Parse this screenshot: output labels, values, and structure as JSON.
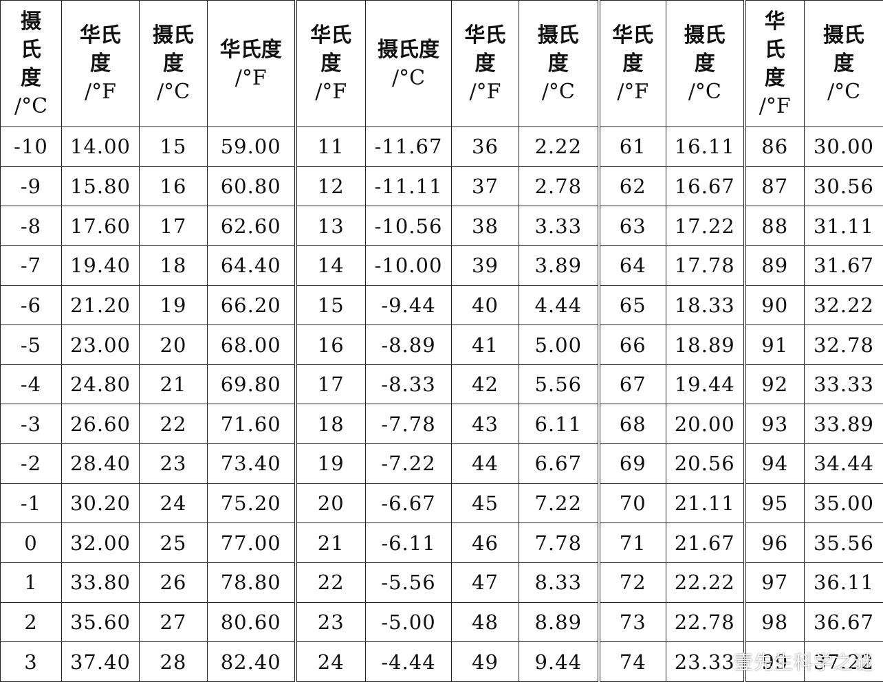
{
  "headers": [
    {
      "name": "摄氏度",
      "unit": "/°C"
    },
    {
      "name": "华氏度",
      "unit": "/°F"
    },
    {
      "name": "摄氏度",
      "unit": "/°C"
    },
    {
      "name": "华氏度",
      "unit": "/°F"
    },
    {
      "name": "华氏度",
      "unit": "/°F"
    },
    {
      "name": "摄氏度",
      "unit": "/°C"
    },
    {
      "name": "华氏度",
      "unit": "/°F"
    },
    {
      "name": "摄氏度",
      "unit": "/°C"
    },
    {
      "name": "华氏度",
      "unit": "/°F"
    },
    {
      "name": "摄氏度",
      "unit": "/°C"
    },
    {
      "name": "华氏度",
      "unit": "/°F"
    },
    {
      "name": "摄氏度",
      "unit": "/°C"
    }
  ],
  "rows": [
    [
      "-10",
      "14.00",
      "15",
      "59.00",
      "11",
      "-11.67",
      "36",
      "2.22",
      "61",
      "16.11",
      "86",
      "30.00"
    ],
    [
      "-9",
      "15.80",
      "16",
      "60.80",
      "12",
      "-11.11",
      "37",
      "2.78",
      "62",
      "16.67",
      "87",
      "30.56"
    ],
    [
      "-8",
      "17.60",
      "17",
      "62.60",
      "13",
      "-10.56",
      "38",
      "3.33",
      "63",
      "17.22",
      "88",
      "31.11"
    ],
    [
      "-7",
      "19.40",
      "18",
      "64.40",
      "14",
      "-10.00",
      "39",
      "3.89",
      "64",
      "17.78",
      "89",
      "31.67"
    ],
    [
      "-6",
      "21.20",
      "19",
      "66.20",
      "15",
      "-9.44",
      "40",
      "4.44",
      "65",
      "18.33",
      "90",
      "32.22"
    ],
    [
      "-5",
      "23.00",
      "20",
      "68.00",
      "16",
      "-8.89",
      "41",
      "5.00",
      "66",
      "18.89",
      "91",
      "32.78"
    ],
    [
      "-4",
      "24.80",
      "21",
      "69.80",
      "17",
      "-8.33",
      "42",
      "5.56",
      "67",
      "19.44",
      "92",
      "33.33"
    ],
    [
      "-3",
      "26.60",
      "22",
      "71.60",
      "18",
      "-7.78",
      "43",
      "6.11",
      "68",
      "20.00",
      "93",
      "33.89"
    ],
    [
      "-2",
      "28.40",
      "23",
      "73.40",
      "19",
      "-7.22",
      "44",
      "6.67",
      "69",
      "20.56",
      "94",
      "34.44"
    ],
    [
      "-1",
      "30.20",
      "24",
      "75.20",
      "20",
      "-6.67",
      "45",
      "7.22",
      "70",
      "21.11",
      "95",
      "35.00"
    ],
    [
      "0",
      "32.00",
      "25",
      "77.00",
      "21",
      "-6.11",
      "46",
      "7.78",
      "71",
      "21.67",
      "96",
      "35.56"
    ],
    [
      "1",
      "33.80",
      "26",
      "78.80",
      "22",
      "-5.56",
      "47",
      "8.33",
      "72",
      "22.22",
      "97",
      "36.11"
    ],
    [
      "2",
      "35.60",
      "27",
      "80.60",
      "23",
      "-5.00",
      "48",
      "8.89",
      "73",
      "22.78",
      "98",
      "36.67"
    ],
    [
      "3",
      "37.40",
      "28",
      "82.40",
      "24",
      "-4.44",
      "49",
      "9.44",
      "74",
      "23.33",
      "99",
      "37.22"
    ]
  ],
  "watermark": "壹先生科学之谜"
}
